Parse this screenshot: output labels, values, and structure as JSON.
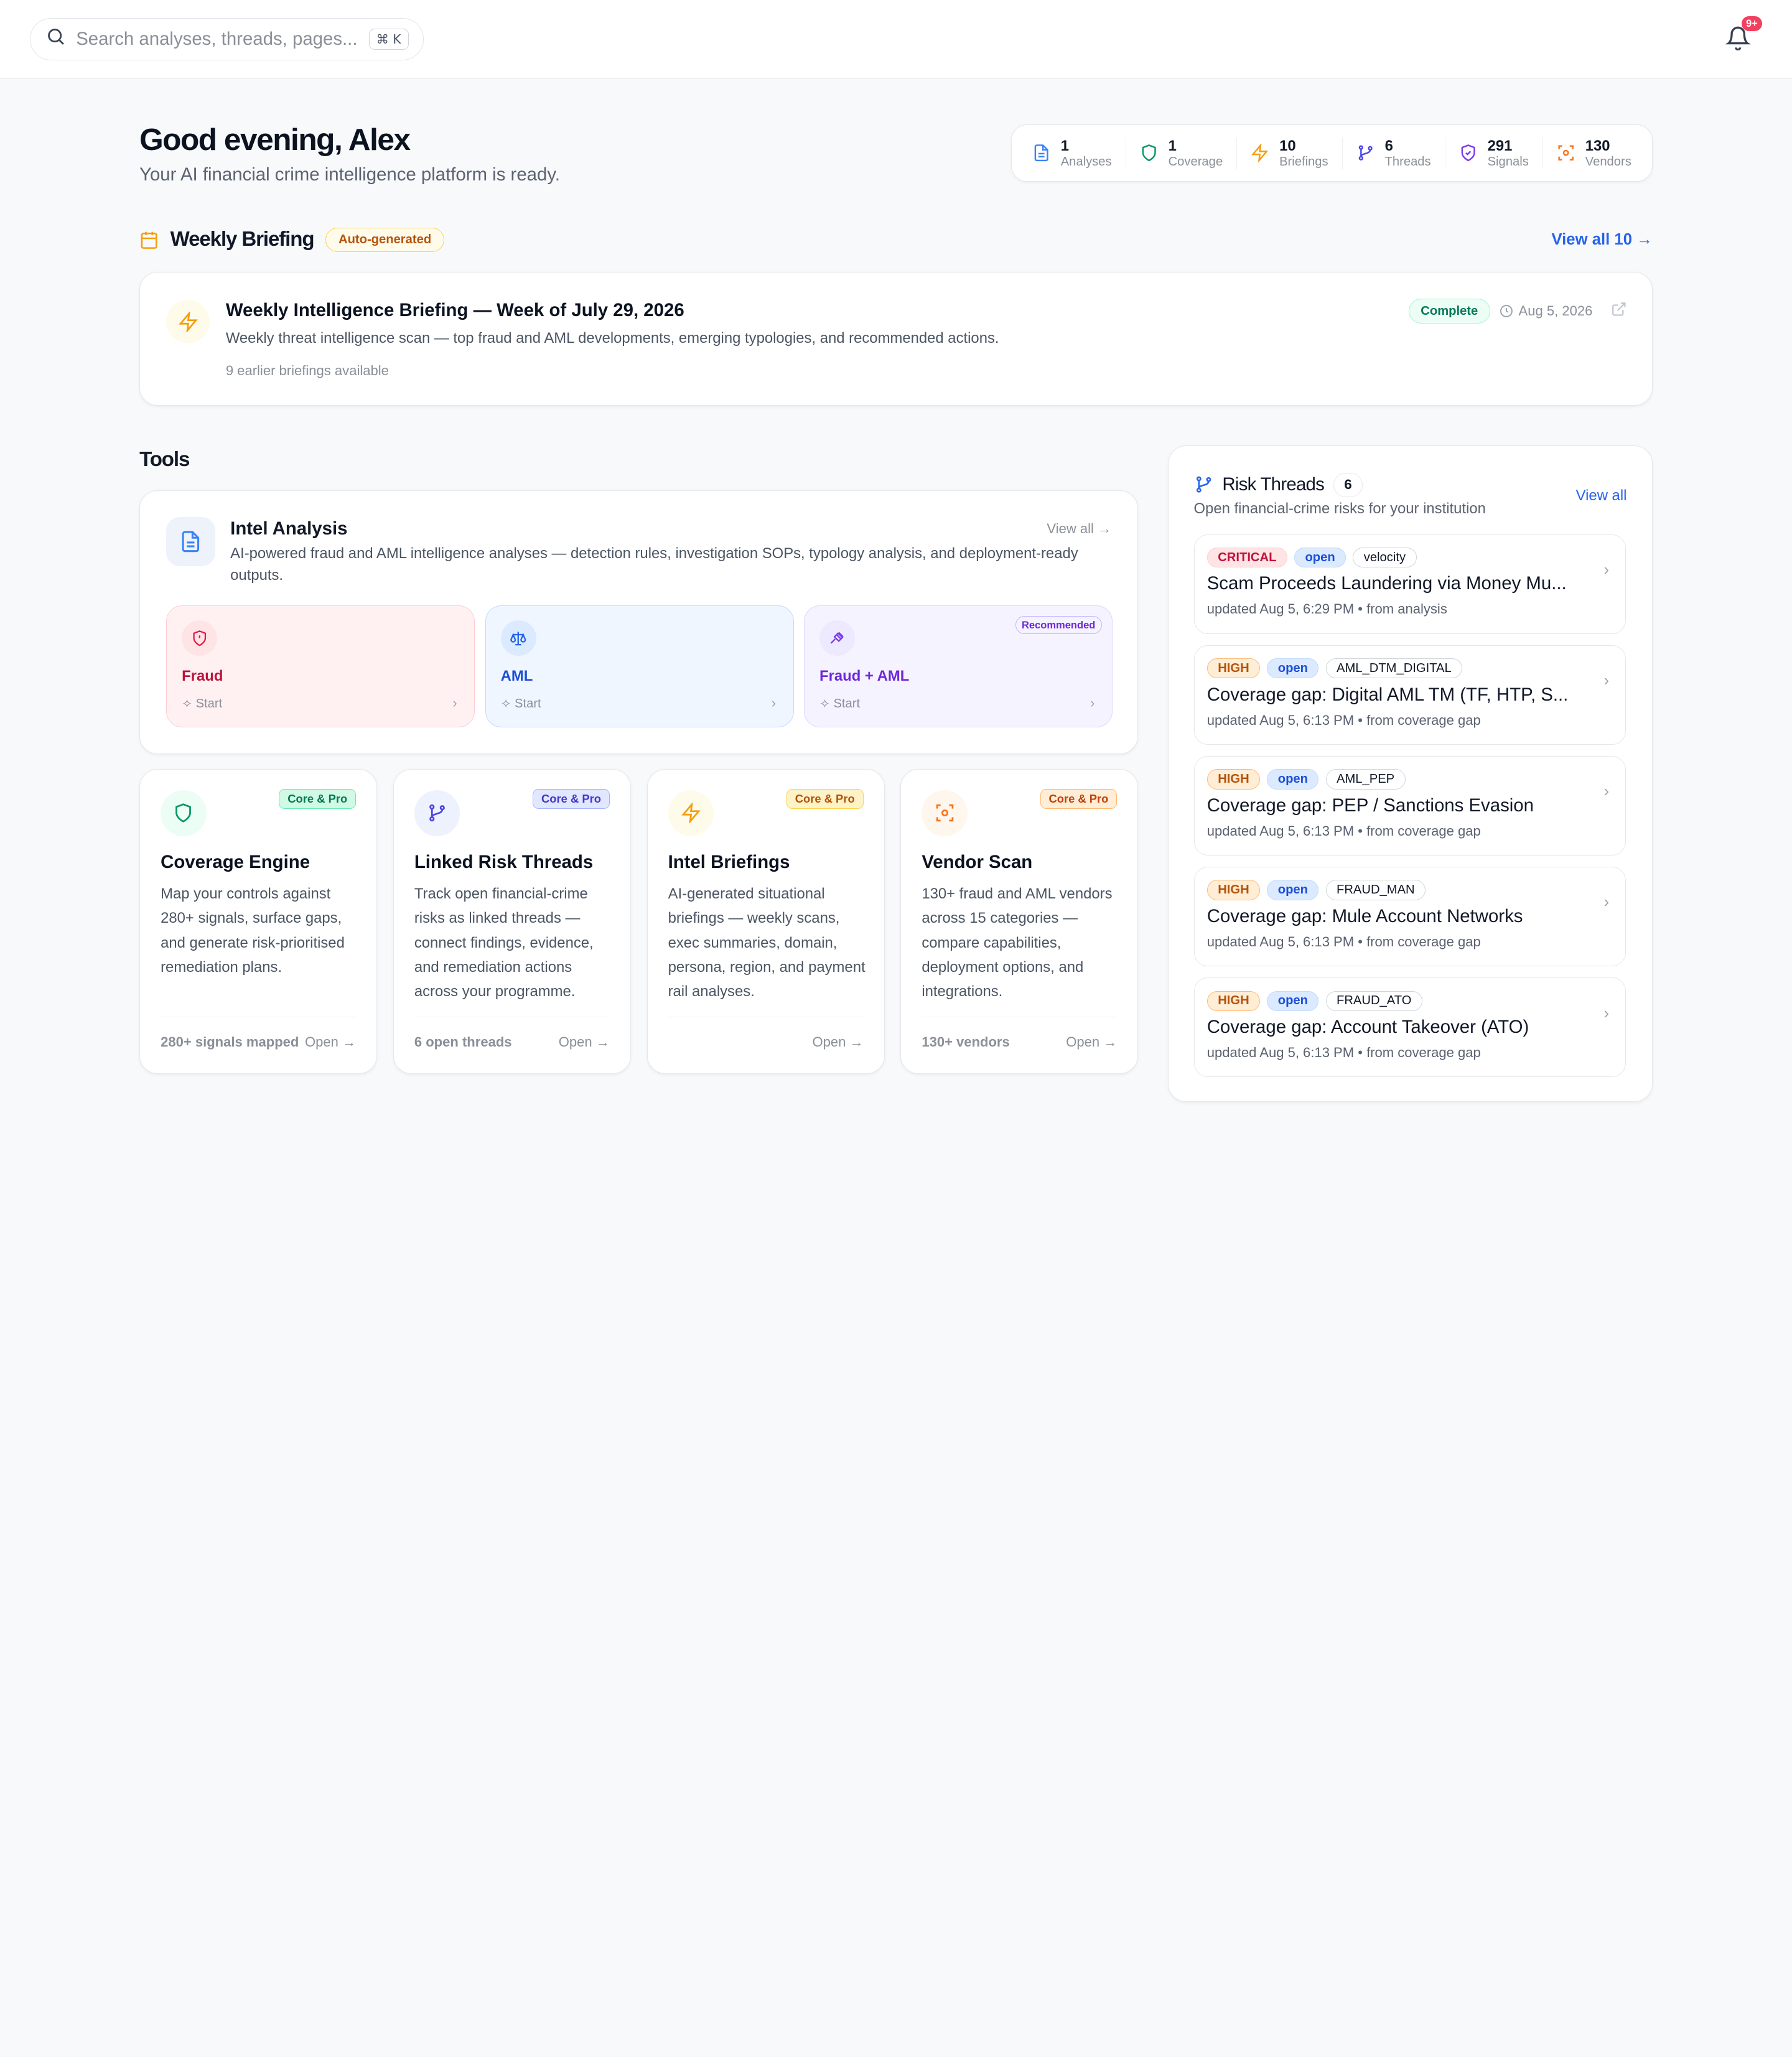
{
  "topbar": {
    "search_placeholder": "Search analyses, threads, pages...",
    "shortcut": "⌘ K",
    "notifications_badge": "9+"
  },
  "header": {
    "greeting": "Good evening, Alex",
    "subtitle": "Your AI financial crime intelligence platform is ready."
  },
  "stats": [
    {
      "value": "1",
      "label": "Analyses",
      "icon": "document-icon",
      "color": "#3b82f6"
    },
    {
      "value": "1",
      "label": "Coverage",
      "icon": "shield-icon",
      "color": "#059669"
    },
    {
      "value": "10",
      "label": "Briefings",
      "icon": "lightning-icon",
      "color": "#f59e0b"
    },
    {
      "value": "6",
      "label": "Threads",
      "icon": "branch-icon",
      "color": "#4f46e5"
    },
    {
      "value": "291",
      "label": "Signals",
      "icon": "shield-check-icon",
      "color": "#7c3aed"
    },
    {
      "value": "130",
      "label": "Vendors",
      "icon": "scan-icon",
      "color": "#f97316"
    }
  ],
  "weekly_briefing": {
    "heading": "Weekly Briefing",
    "badge": "Auto-generated",
    "view_all": "View all 10 →",
    "title": "Weekly Intelligence Briefing — Week of July 29, 2026",
    "description": "Weekly threat intelligence scan — top fraud and AML developments, emerging typologies, and recommended actions.",
    "earlier": "9 earlier briefings available",
    "status": "Complete",
    "date": "Aug 5, 2026"
  },
  "tools": {
    "heading": "Tools",
    "intel": {
      "title": "Intel Analysis",
      "description": "AI-powered fraud and AML intelligence analyses — detection rules, investigation SOPs, typology analysis, and deployment-ready outputs.",
      "view_all": "View all →",
      "options": [
        {
          "name": "Fraud",
          "start": "Start"
        },
        {
          "name": "AML",
          "start": "Start"
        },
        {
          "name": "Fraud + AML",
          "start": "Start",
          "badge": "Recommended"
        }
      ]
    },
    "cards": [
      {
        "name": "Coverage Engine",
        "badge": "Core & Pro",
        "description": "Map your controls against 280+ signals, surface gaps, and generate risk-prioritised remediation plans.",
        "stat": "280+ signals mapped",
        "action": "Open →"
      },
      {
        "name": "Linked Risk Threads",
        "badge": "Core & Pro",
        "description": "Track open financial-crime risks as linked threads — connect findings, evidence, and remediation actions across your programme.",
        "stat": "6 open threads",
        "action": "Open →"
      },
      {
        "name": "Intel Briefings",
        "badge": "Core & Pro",
        "description": "AI-generated situational briefings — weekly scans, exec summaries, domain, persona, region, and payment rail analyses.",
        "stat": "",
        "action": "Open →"
      },
      {
        "name": "Vendor Scan",
        "badge": "Core & Pro",
        "description": "130+ fraud and AML vendors across 15 categories — compare capabilities, deployment options, and integrations.",
        "stat": "130+ vendors",
        "action": "Open →"
      }
    ]
  },
  "risk_threads": {
    "title": "Risk Threads",
    "count": "6",
    "subtitle": "Open financial-crime risks for your institution",
    "view_all": "View all",
    "items": [
      {
        "severity": "CRITICAL",
        "status": "open",
        "tag": "velocity",
        "title": "Scam Proceeds Laundering via Money Mu...",
        "meta": "updated Aug 5, 6:29 PM • from analysis"
      },
      {
        "severity": "HIGH",
        "status": "open",
        "tag": "AML_DTM_DIGITAL",
        "title": "Coverage gap: Digital AML TM (TF, HTP, S...",
        "meta": "updated Aug 5, 6:13 PM • from coverage gap"
      },
      {
        "severity": "HIGH",
        "status": "open",
        "tag": "AML_PEP",
        "title": "Coverage gap: PEP / Sanctions Evasion",
        "meta": "updated Aug 5, 6:13 PM • from coverage gap"
      },
      {
        "severity": "HIGH",
        "status": "open",
        "tag": "FRAUD_MAN",
        "title": "Coverage gap: Mule Account Networks",
        "meta": "updated Aug 5, 6:13 PM • from coverage gap"
      },
      {
        "severity": "HIGH",
        "status": "open",
        "tag": "FRAUD_ATO",
        "title": "Coverage gap: Account Takeover (ATO)",
        "meta": "updated Aug 5, 6:13 PM • from coverage gap"
      }
    ]
  }
}
